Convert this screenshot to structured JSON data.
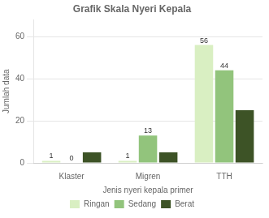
{
  "chart_data": {
    "type": "bar",
    "title": "Grafik Skala Nyeri Kepala",
    "xlabel": "Jenis nyeri kepala primer",
    "ylabel": "Jumlah data",
    "categories": [
      "Klaster",
      "Migren",
      "TTH"
    ],
    "series": [
      {
        "name": "Ringan",
        "color": "#d9efc2",
        "values": [
          1,
          1,
          56
        ],
        "data_labels": true
      },
      {
        "name": "Sedang",
        "color": "#92c47c",
        "values": [
          0,
          13,
          44
        ],
        "data_labels": true
      },
      {
        "name": "Berat",
        "color": "#3d5326",
        "values": [
          5,
          5,
          25
        ],
        "data_labels": false
      }
    ],
    "ylim": [
      0,
      68
    ],
    "yticks": [
      0,
      20,
      40,
      60
    ],
    "grid": true,
    "legend": "bottom"
  }
}
